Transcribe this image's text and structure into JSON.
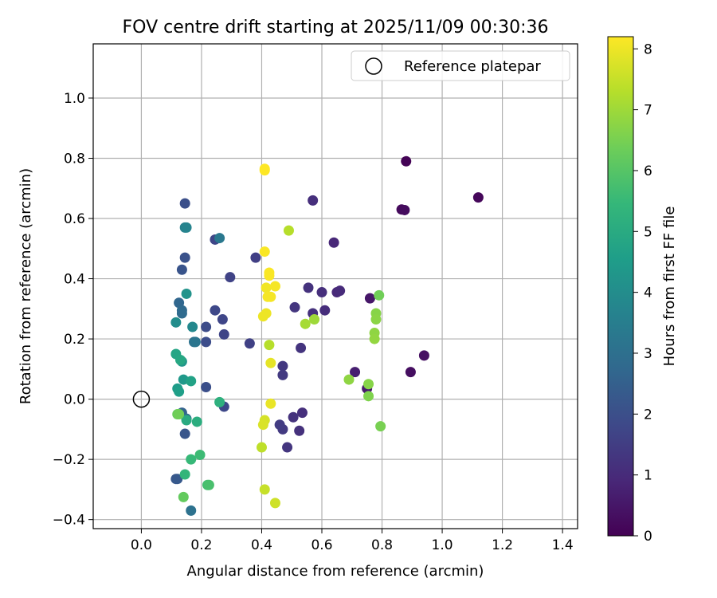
{
  "chart_data": {
    "type": "scatter",
    "title": "FOV centre drift starting at 2025/11/09 00:30:36",
    "xlabel": "Angular distance from reference (arcmin)",
    "ylabel": "Rotation from reference (arcmin)",
    "xlim": [
      -0.16,
      1.45
    ],
    "ylim": [
      -0.43,
      1.18
    ],
    "xticks": [
      0.0,
      0.2,
      0.4,
      0.6,
      0.8,
      1.0,
      1.2,
      1.4
    ],
    "xtick_labels": [
      "0.0",
      "0.2",
      "0.4",
      "0.6",
      "0.8",
      "1.0",
      "1.2",
      "1.4"
    ],
    "yticks": [
      -0.4,
      -0.2,
      0.0,
      0.2,
      0.4,
      0.6,
      0.8,
      1.0
    ],
    "ytick_labels": [
      "−0.4",
      "−0.2",
      "0.0",
      "0.2",
      "0.4",
      "0.6",
      "0.8",
      "1.0"
    ],
    "grid": true,
    "legend": {
      "placement": "top-right",
      "entries": [
        "Reference platepar"
      ]
    },
    "reference": {
      "x": 0.0,
      "y": 0.0,
      "label": "Reference platepar"
    },
    "colorbar": {
      "label": "Hours from first FF file",
      "range": [
        0,
        8.2
      ],
      "ticks": [
        0,
        1,
        2,
        3,
        4,
        5,
        6,
        7,
        8
      ],
      "tick_labels": [
        "0",
        "1",
        "2",
        "3",
        "4",
        "5",
        "6",
        "7",
        "8"
      ],
      "colormap": "viridis",
      "colormap_stops": [
        "#440154",
        "#482878",
        "#3e4989",
        "#31688e",
        "#26828e",
        "#1f9e89",
        "#35b779",
        "#6ece58",
        "#b5de2b",
        "#fde725"
      ]
    },
    "points": [
      {
        "x": 0.88,
        "y": 0.79,
        "t": 0.05
      },
      {
        "x": 1.12,
        "y": 0.67,
        "t": 0.15
      },
      {
        "x": 0.865,
        "y": 0.63,
        "t": 0.2
      },
      {
        "x": 0.875,
        "y": 0.628,
        "t": 0.25
      },
      {
        "x": 0.895,
        "y": 0.09,
        "t": 0.3
      },
      {
        "x": 0.94,
        "y": 0.145,
        "t": 0.35
      },
      {
        "x": 0.76,
        "y": 0.335,
        "t": 0.5
      },
      {
        "x": 0.75,
        "y": 0.035,
        "t": 0.6
      },
      {
        "x": 0.71,
        "y": 0.09,
        "t": 0.7
      },
      {
        "x": 0.64,
        "y": 0.52,
        "t": 0.9
      },
      {
        "x": 0.65,
        "y": 0.355,
        "t": 0.95
      },
      {
        "x": 0.66,
        "y": 0.36,
        "t": 1.0
      },
      {
        "x": 0.61,
        "y": 0.295,
        "t": 1.05
      },
      {
        "x": 0.6,
        "y": 0.355,
        "t": 1.1
      },
      {
        "x": 0.57,
        "y": 0.66,
        "t": 1.1
      },
      {
        "x": 0.57,
        "y": 0.285,
        "t": 1.15
      },
      {
        "x": 0.555,
        "y": 0.37,
        "t": 1.2
      },
      {
        "x": 0.53,
        "y": 0.17,
        "t": 1.25
      },
      {
        "x": 0.535,
        "y": -0.045,
        "t": 1.1
      },
      {
        "x": 0.525,
        "y": -0.105,
        "t": 1.15
      },
      {
        "x": 0.505,
        "y": -0.06,
        "t": 1.2
      },
      {
        "x": 0.51,
        "y": 0.305,
        "t": 1.3
      },
      {
        "x": 0.485,
        "y": -0.16,
        "t": 1.3
      },
      {
        "x": 0.47,
        "y": 0.11,
        "t": 1.35
      },
      {
        "x": 0.47,
        "y": 0.08,
        "t": 1.4
      },
      {
        "x": 0.47,
        "y": -0.1,
        "t": 1.4
      },
      {
        "x": 0.46,
        "y": -0.085,
        "t": 1.45
      },
      {
        "x": 0.38,
        "y": 0.47,
        "t": 1.55
      },
      {
        "x": 0.36,
        "y": 0.185,
        "t": 1.6
      },
      {
        "x": 0.295,
        "y": 0.405,
        "t": 1.65
      },
      {
        "x": 0.275,
        "y": 0.215,
        "t": 1.7
      },
      {
        "x": 0.27,
        "y": 0.265,
        "t": 1.75
      },
      {
        "x": 0.275,
        "y": -0.025,
        "t": 1.8
      },
      {
        "x": 0.245,
        "y": 0.53,
        "t": 1.75
      },
      {
        "x": 0.245,
        "y": 0.295,
        "t": 1.8
      },
      {
        "x": 0.215,
        "y": 0.24,
        "t": 1.9
      },
      {
        "x": 0.215,
        "y": 0.19,
        "t": 1.95
      },
      {
        "x": 0.215,
        "y": 0.04,
        "t": 2.0
      },
      {
        "x": 0.145,
        "y": 0.65,
        "t": 2.0
      },
      {
        "x": 0.145,
        "y": 0.47,
        "t": 2.1
      },
      {
        "x": 0.135,
        "y": 0.43,
        "t": 2.15
      },
      {
        "x": 0.145,
        "y": -0.115,
        "t": 2.2
      },
      {
        "x": 0.115,
        "y": -0.265,
        "t": 2.25
      },
      {
        "x": 0.12,
        "y": -0.265,
        "t": 2.3
      },
      {
        "x": 0.125,
        "y": 0.32,
        "t": 2.7
      },
      {
        "x": 0.135,
        "y": 0.295,
        "t": 2.8
      },
      {
        "x": 0.135,
        "y": 0.285,
        "t": 2.85
      },
      {
        "x": 0.135,
        "y": -0.045,
        "t": 2.6
      },
      {
        "x": 0.15,
        "y": -0.065,
        "t": 2.9
      },
      {
        "x": 0.175,
        "y": 0.19,
        "t": 3.1
      },
      {
        "x": 0.18,
        "y": 0.19,
        "t": 3.2
      },
      {
        "x": 0.26,
        "y": 0.535,
        "t": 3.3
      },
      {
        "x": 0.165,
        "y": -0.37,
        "t": 3.1
      },
      {
        "x": 0.145,
        "y": 0.57,
        "t": 3.6
      },
      {
        "x": 0.15,
        "y": 0.57,
        "t": 3.7
      },
      {
        "x": 0.17,
        "y": 0.24,
        "t": 3.85
      },
      {
        "x": 0.115,
        "y": 0.255,
        "t": 4.0
      },
      {
        "x": 0.15,
        "y": 0.35,
        "t": 4.2
      },
      {
        "x": 0.135,
        "y": 0.125,
        "t": 4.3
      },
      {
        "x": 0.14,
        "y": 0.065,
        "t": 4.4
      },
      {
        "x": 0.12,
        "y": 0.035,
        "t": 4.5
      },
      {
        "x": 0.125,
        "y": 0.025,
        "t": 4.6
      },
      {
        "x": 0.165,
        "y": 0.06,
        "t": 4.7
      },
      {
        "x": 0.115,
        "y": 0.15,
        "t": 4.8
      },
      {
        "x": 0.13,
        "y": 0.13,
        "t": 4.9
      },
      {
        "x": 0.15,
        "y": -0.07,
        "t": 5.0
      },
      {
        "x": 0.185,
        "y": -0.075,
        "t": 5.1
      },
      {
        "x": 0.26,
        "y": -0.01,
        "t": 5.2
      },
      {
        "x": 0.145,
        "y": -0.25,
        "t": 5.4
      },
      {
        "x": 0.165,
        "y": -0.2,
        "t": 5.5
      },
      {
        "x": 0.195,
        "y": -0.185,
        "t": 5.6
      },
      {
        "x": 0.22,
        "y": -0.285,
        "t": 5.7
      },
      {
        "x": 0.225,
        "y": -0.285,
        "t": 5.8
      },
      {
        "x": 0.14,
        "y": -0.325,
        "t": 6.2
      },
      {
        "x": 0.12,
        "y": -0.05,
        "t": 6.3
      },
      {
        "x": 0.125,
        "y": -0.05,
        "t": 6.4
      },
      {
        "x": 0.79,
        "y": 0.345,
        "t": 6.4
      },
      {
        "x": 0.795,
        "y": -0.09,
        "t": 6.5
      },
      {
        "x": 0.755,
        "y": 0.01,
        "t": 6.6
      },
      {
        "x": 0.755,
        "y": 0.05,
        "t": 6.7
      },
      {
        "x": 0.69,
        "y": 0.065,
        "t": 6.8
      },
      {
        "x": 0.78,
        "y": 0.285,
        "t": 6.7
      },
      {
        "x": 0.78,
        "y": 0.265,
        "t": 6.75
      },
      {
        "x": 0.775,
        "y": 0.22,
        "t": 6.8
      },
      {
        "x": 0.775,
        "y": 0.2,
        "t": 6.85
      },
      {
        "x": 0.575,
        "y": 0.265,
        "t": 7.0
      },
      {
        "x": 0.545,
        "y": 0.25,
        "t": 7.1
      },
      {
        "x": 0.49,
        "y": 0.56,
        "t": 7.3
      },
      {
        "x": 0.425,
        "y": 0.18,
        "t": 7.3
      },
      {
        "x": 0.4,
        "y": -0.16,
        "t": 7.4
      },
      {
        "x": 0.41,
        "y": -0.3,
        "t": 7.5
      },
      {
        "x": 0.445,
        "y": -0.345,
        "t": 7.6
      },
      {
        "x": 0.41,
        "y": -0.07,
        "t": 7.7
      },
      {
        "x": 0.405,
        "y": -0.085,
        "t": 7.75
      },
      {
        "x": 0.43,
        "y": 0.12,
        "t": 7.9
      },
      {
        "x": 0.43,
        "y": -0.015,
        "t": 7.95
      },
      {
        "x": 0.405,
        "y": 0.275,
        "t": 8.0
      },
      {
        "x": 0.415,
        "y": 0.285,
        "t": 8.0
      },
      {
        "x": 0.415,
        "y": 0.37,
        "t": 8.05
      },
      {
        "x": 0.42,
        "y": 0.34,
        "t": 8.1
      },
      {
        "x": 0.43,
        "y": 0.34,
        "t": 8.1
      },
      {
        "x": 0.445,
        "y": 0.375,
        "t": 8.1
      },
      {
        "x": 0.425,
        "y": 0.42,
        "t": 8.15
      },
      {
        "x": 0.425,
        "y": 0.41,
        "t": 8.15
      },
      {
        "x": 0.41,
        "y": 0.49,
        "t": 8.15
      },
      {
        "x": 0.41,
        "y": 0.76,
        "t": 8.2
      },
      {
        "x": 0.41,
        "y": 0.765,
        "t": 8.2
      }
    ]
  }
}
